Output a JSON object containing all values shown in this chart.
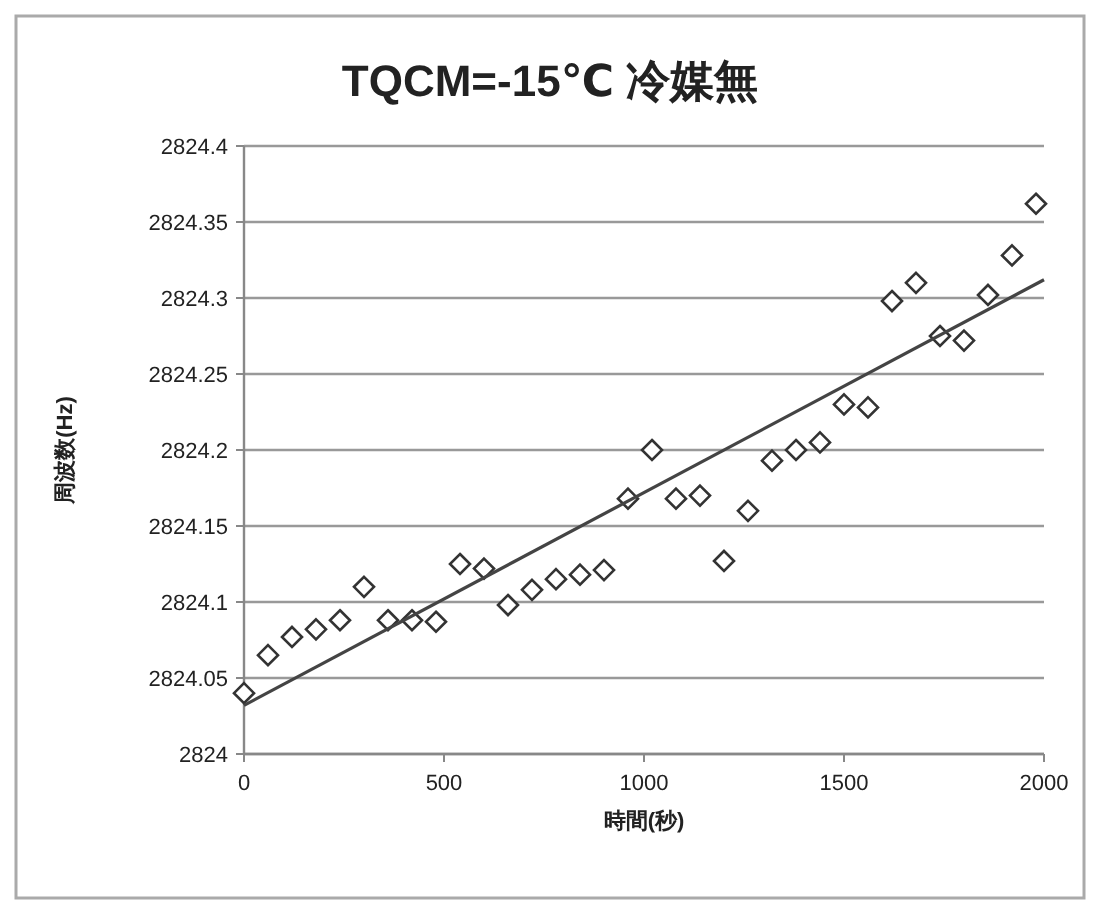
{
  "chart_data": {
    "type": "scatter",
    "title": "TQCM=-15℃  冷媒無",
    "xlabel": "時間(秒)",
    "ylabel": "周波数(Hz)",
    "xlim": [
      0,
      2000
    ],
    "xticks": [
      0,
      500,
      1000,
      1500,
      2000
    ],
    "ylim": [
      2824,
      2824.4
    ],
    "yticks": [
      2824,
      2824.05,
      2824.1,
      2824.15,
      2824.2,
      2824.25,
      2824.3,
      2824.35,
      2824.4
    ],
    "grid": "y",
    "series": [
      {
        "marker": "diamond",
        "color": "#333333",
        "x": [
          0,
          60,
          120,
          180,
          240,
          300,
          360,
          420,
          480,
          540,
          600,
          660,
          720,
          780,
          840,
          900,
          960,
          1020,
          1080,
          1140,
          1200,
          1260,
          1320,
          1380,
          1440,
          1500,
          1560,
          1620,
          1680,
          1740,
          1800,
          1860,
          1920,
          1980
        ],
        "values": [
          2824.04,
          2824.065,
          2824.077,
          2824.082,
          2824.088,
          2824.11,
          2824.088,
          2824.088,
          2824.087,
          2824.125,
          2824.122,
          2824.098,
          2824.108,
          2824.115,
          2824.118,
          2824.121,
          2824.168,
          2824.2,
          2824.168,
          2824.17,
          2824.127,
          2824.16,
          2824.193,
          2824.2,
          2824.205,
          2824.23,
          2824.228,
          2824.298,
          2824.31,
          2824.275,
          2824.272,
          2824.302,
          2824.328,
          2824.362
        ]
      },
      {
        "type": "line",
        "marker": "none",
        "color": "#444444",
        "x": [
          0,
          2000
        ],
        "values": [
          2824.032,
          2824.312
        ]
      }
    ]
  }
}
